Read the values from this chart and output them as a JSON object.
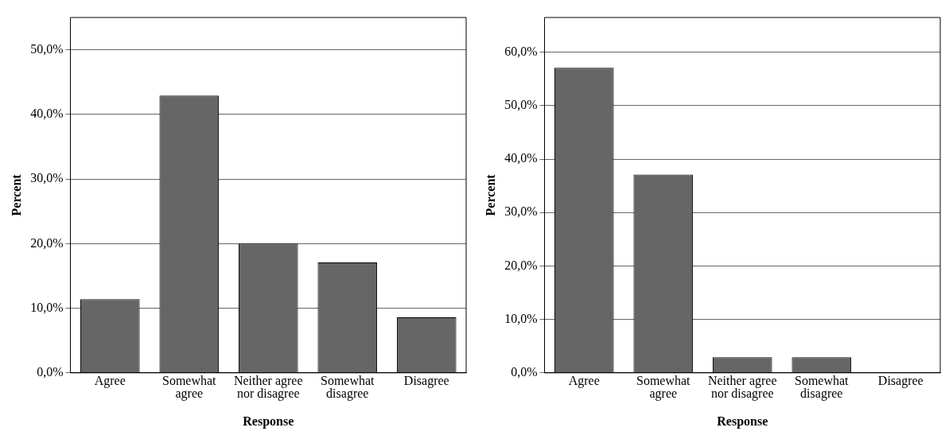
{
  "chart_data": [
    {
      "type": "bar",
      "xlabel": "Response",
      "ylabel": "Percent",
      "categories": [
        "Agree",
        "Somewhat agree",
        "Neither agree nor disagree",
        "Somewhat disagree",
        "Disagree"
      ],
      "values": [
        11.4,
        42.9,
        20.0,
        17.1,
        8.6
      ],
      "color": "#666666",
      "ylim": [
        0,
        55
      ],
      "yticks": [
        {
          "value": 0,
          "label": "0,0%"
        },
        {
          "value": 10,
          "label": "10,0%"
        },
        {
          "value": 20,
          "label": "20,0%"
        },
        {
          "value": 30,
          "label": "30,0%"
        },
        {
          "value": 40,
          "label": "40,0%"
        },
        {
          "value": 50,
          "label": "50,0%"
        }
      ],
      "grid": "y",
      "legend": false
    },
    {
      "type": "bar",
      "xlabel": "Response",
      "ylabel": "Percent",
      "categories": [
        "Agree",
        "Somewhat agree",
        "Neither agree nor disagree",
        "Somewhat disagree",
        "Disagree"
      ],
      "values": [
        57.1,
        37.1,
        2.9,
        2.9,
        0
      ],
      "color": "#666666",
      "ylim": [
        0,
        66.5
      ],
      "yticks": [
        {
          "value": 0,
          "label": "0,0%"
        },
        {
          "value": 10,
          "label": "10,0%"
        },
        {
          "value": 20,
          "label": "20,0%"
        },
        {
          "value": 30,
          "label": "30,0%"
        },
        {
          "value": 40,
          "label": "40,0%"
        },
        {
          "value": 50,
          "label": "50,0%"
        },
        {
          "value": 60,
          "label": "60,0%"
        }
      ],
      "grid": "y",
      "legend": false
    }
  ]
}
